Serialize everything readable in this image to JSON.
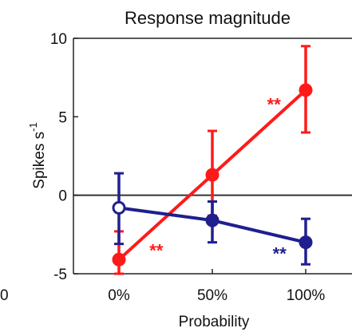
{
  "chart_data": {
    "type": "line",
    "title": "Response magnitude",
    "xlabel": "Probability",
    "ylabel_main": "Spikes s",
    "ylabel_exponent": "-1",
    "categories": [
      "0%",
      "50%",
      "100%"
    ],
    "x_values": [
      0,
      50,
      100
    ],
    "ylim": [
      -5,
      10
    ],
    "yticks": [
      10,
      5,
      0,
      -5
    ],
    "ytick_labels": [
      "10",
      "5",
      "0",
      "-5"
    ],
    "left_edge_label": "0",
    "zero_line": true,
    "series": [
      {
        "color": "#ff1a1a",
        "values": [
          -4.1,
          1.3,
          6.7
        ],
        "err_upper": [
          -2.3,
          4.1,
          9.5
        ],
        "err_lower": [
          -5.0,
          -1.3,
          4.0
        ],
        "open_markers": [
          false,
          false,
          false
        ],
        "stars": "**"
      },
      {
        "color": "#1f1f8f",
        "values": [
          -0.8,
          -1.6,
          -3.0
        ],
        "err_upper": [
          1.4,
          -0.4,
          -1.5
        ],
        "err_lower": [
          -3.1,
          -3.0,
          -4.4
        ],
        "open_markers": [
          true,
          false,
          false
        ],
        "stars": "**"
      }
    ],
    "annotations": [
      {
        "text": "**",
        "color": "#ff1a1a",
        "x": 83,
        "y": 5.8
      },
      {
        "text": "**",
        "color": "#ff1a1a",
        "x": 20,
        "y": -3.5
      },
      {
        "text": "**",
        "color": "#1f1f8f",
        "x": 86,
        "y": -3.7
      }
    ]
  }
}
